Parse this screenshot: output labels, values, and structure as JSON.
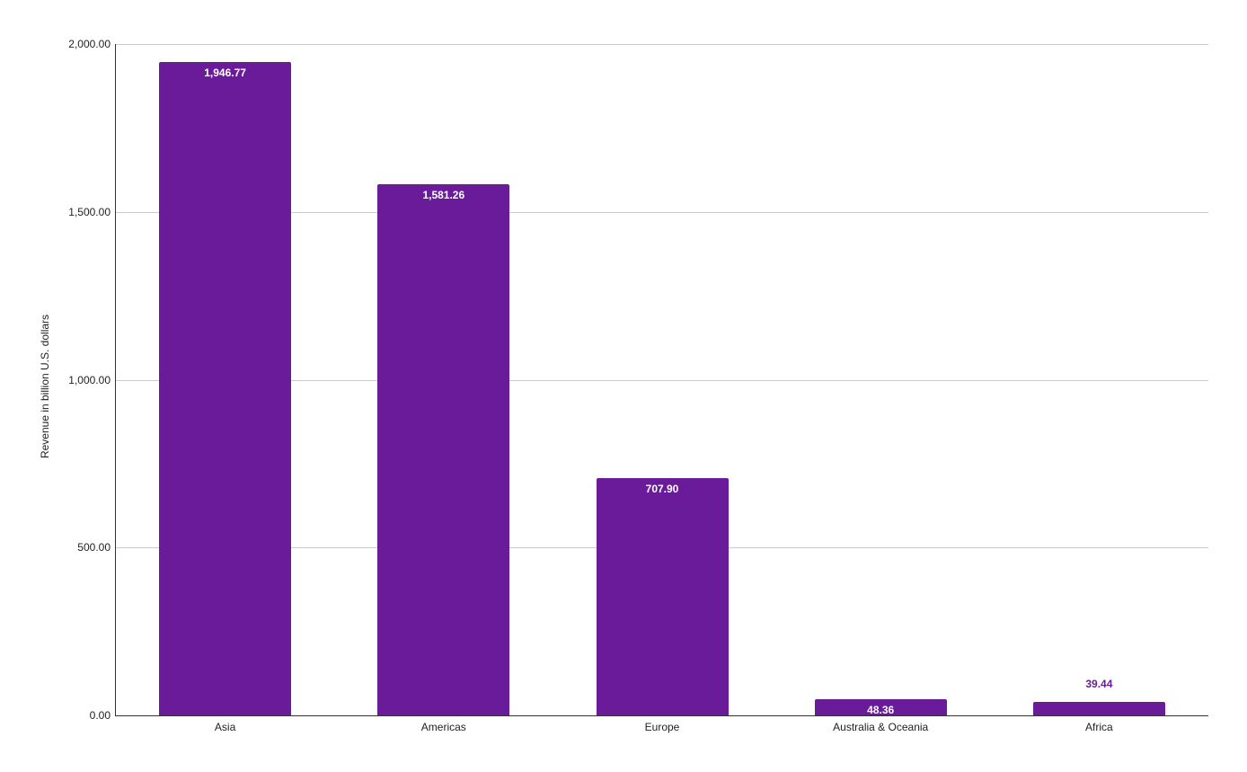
{
  "chart_data": {
    "type": "bar",
    "title": "",
    "xlabel": "",
    "ylabel": "Revenue in billion U.S. dollars",
    "ylim": [
      0,
      2000
    ],
    "yticks": [
      "0.00",
      "500.00",
      "1,000.00",
      "1,500.00",
      "2,000.00"
    ],
    "ytick_values": [
      0,
      500,
      1000,
      1500,
      2000
    ],
    "grid": true,
    "legend": "none",
    "categories": [
      "Asia",
      "Americas",
      "Europe",
      "Australia & Oceania",
      "Africa"
    ],
    "values": [
      1946.77,
      1581.26,
      707.9,
      48.36,
      39.44
    ],
    "value_labels": [
      "1,946.77",
      "1,581.26",
      "707.90",
      "48.36",
      "39.44"
    ],
    "bar_color": "#6a1b9a"
  }
}
